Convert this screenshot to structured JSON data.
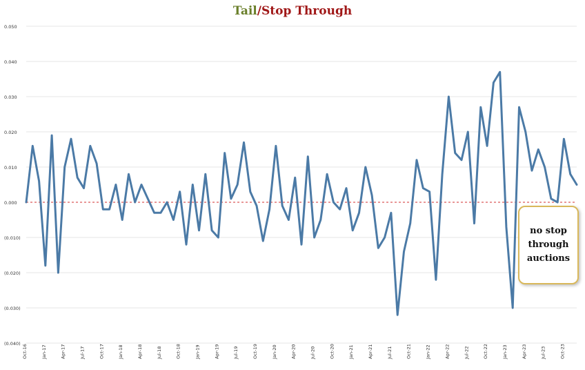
{
  "chart_data": {
    "type": "line",
    "title_part1": "Tail",
    "title_sep": "/",
    "title_part2": "Stop Through",
    "ylim": [
      -0.04,
      0.05
    ],
    "y_ticks": [
      0.05,
      0.04,
      0.03,
      0.02,
      0.01,
      0.0,
      -0.01,
      -0.02,
      -0.03,
      -0.04
    ],
    "y_tick_labels": [
      "0.050",
      "0.040",
      "0.030",
      "0.020",
      "0.010",
      "0.000",
      "(0.010)",
      "(0.020)",
      "(0.030)",
      "(0.040)"
    ],
    "x_tick_labels": [
      "Oct-16",
      "Jan-17",
      "Apr-17",
      "Jul-17",
      "Oct-17",
      "Jan-18",
      "Apr-18",
      "Jul-18",
      "Oct-18",
      "Jan-19",
      "Apr-19",
      "Jul-19",
      "Oct-19",
      "Jan-20",
      "Apr-20",
      "Jul-20",
      "Oct-20",
      "Jan-21",
      "Apr-21",
      "Jul-21",
      "Oct-21",
      "Jan-22",
      "Apr-22",
      "Jul-22",
      "Oct-22",
      "Jan-23",
      "Apr-23",
      "Jul-23",
      "Oct-23"
    ],
    "zero_line_color": "#d12c2c",
    "series": [
      {
        "color": "#4b7aa6",
        "values": [
          0.0,
          0.016,
          0.006,
          -0.018,
          0.019,
          -0.02,
          0.01,
          0.018,
          0.007,
          0.004,
          0.016,
          0.011,
          -0.002,
          -0.002,
          0.005,
          -0.005,
          0.008,
          0.0,
          0.005,
          0.001,
          -0.003,
          -0.003,
          0.0,
          -0.005,
          0.003,
          -0.012,
          0.005,
          -0.008,
          0.008,
          -0.008,
          -0.01,
          0.014,
          0.001,
          0.005,
          0.017,
          0.003,
          -0.001,
          -0.011,
          -0.002,
          0.016,
          -0.001,
          -0.005,
          0.007,
          -0.012,
          0.013,
          -0.01,
          -0.005,
          0.008,
          0.0,
          -0.002,
          0.004,
          -0.008,
          -0.003,
          0.01,
          0.002,
          -0.013,
          -0.01,
          -0.003,
          -0.032,
          -0.014,
          -0.006,
          0.012,
          0.004,
          0.003,
          -0.022,
          0.008,
          0.03,
          0.014,
          0.012,
          0.02,
          -0.006,
          0.027,
          0.016,
          0.034,
          0.037,
          -0.007,
          -0.03,
          0.027,
          0.02,
          0.009,
          0.015,
          0.01,
          0.001,
          0.0,
          0.018,
          0.008,
          0.005
        ]
      }
    ],
    "annotation": [
      "no stop",
      "through",
      "auctions"
    ],
    "grid": true
  }
}
